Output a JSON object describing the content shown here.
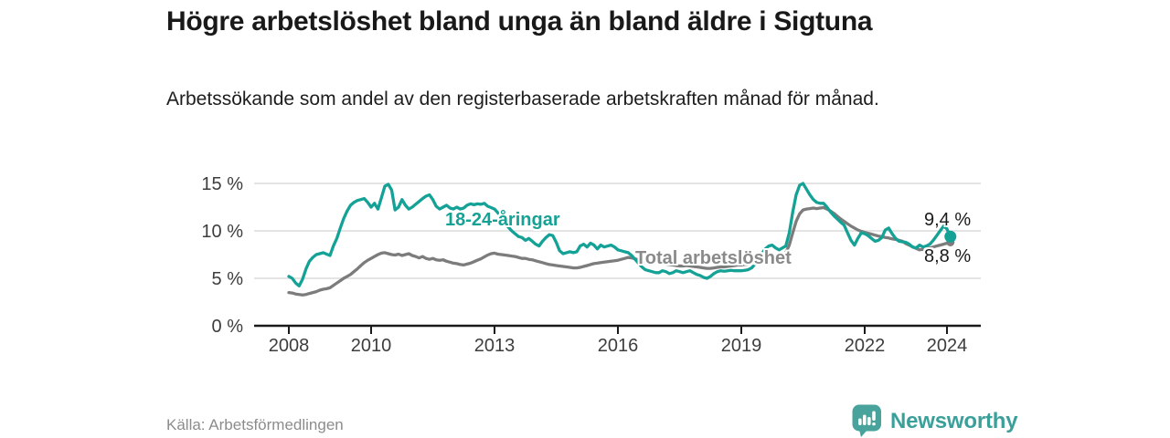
{
  "chart_data": {
    "type": "line",
    "title": "Högre arbetslöshet bland unga än bland äldre i Sigtuna",
    "subtitle": "Arbetssökande som andel av den registerbaserade arbetskraften månad för månad.",
    "unit": "%",
    "x_start_year": 2008,
    "x_step_months": 1,
    "ylim": [
      0,
      15.5
    ],
    "grid": "horizontal",
    "y_ticks": [
      {
        "value": 0,
        "label": "0 %"
      },
      {
        "value": 5,
        "label": "5 %"
      },
      {
        "value": 10,
        "label": "10 %"
      },
      {
        "value": 15,
        "label": "15 %"
      }
    ],
    "x_ticks": [
      {
        "value": 2008,
        "label": "2008"
      },
      {
        "value": 2010,
        "label": "2010"
      },
      {
        "value": 2013,
        "label": "2013"
      },
      {
        "value": 2016,
        "label": "2016"
      },
      {
        "value": 2019,
        "label": "2019"
      },
      {
        "value": 2022,
        "label": "2022"
      },
      {
        "value": 2024,
        "label": "2024"
      }
    ],
    "series": [
      {
        "name": "Total arbetslöshet",
        "color": "#7c7c7c",
        "end_dot_radius": 4.5,
        "end_value_label": "8,8 %",
        "values": [
          3.5,
          3.45,
          3.35,
          3.3,
          3.25,
          3.3,
          3.4,
          3.5,
          3.6,
          3.75,
          3.85,
          3.9,
          4.0,
          4.25,
          4.5,
          4.75,
          5.0,
          5.2,
          5.4,
          5.7,
          6.0,
          6.35,
          6.65,
          6.9,
          7.1,
          7.3,
          7.5,
          7.65,
          7.7,
          7.6,
          7.5,
          7.45,
          7.55,
          7.4,
          7.5,
          7.6,
          7.4,
          7.3,
          7.15,
          7.3,
          7.1,
          7.0,
          7.1,
          6.95,
          6.9,
          6.95,
          6.8,
          6.7,
          6.6,
          6.55,
          6.45,
          6.4,
          6.5,
          6.6,
          6.75,
          6.9,
          7.05,
          7.25,
          7.45,
          7.6,
          7.65,
          7.55,
          7.5,
          7.45,
          7.4,
          7.35,
          7.3,
          7.2,
          7.1,
          7.1,
          7.0,
          6.95,
          6.85,
          6.75,
          6.65,
          6.55,
          6.45,
          6.4,
          6.35,
          6.3,
          6.25,
          6.2,
          6.15,
          6.1,
          6.1,
          6.15,
          6.25,
          6.35,
          6.45,
          6.55,
          6.6,
          6.65,
          6.7,
          6.75,
          6.8,
          6.85,
          6.9,
          7.0,
          7.1,
          7.2,
          7.15,
          7.05,
          6.95,
          6.85,
          6.8,
          6.75,
          6.7,
          6.65,
          6.6,
          6.55,
          6.5,
          6.45,
          6.4,
          6.35,
          6.3,
          6.3,
          6.35,
          6.3,
          6.25,
          6.2,
          6.15,
          6.1,
          6.05,
          6.05,
          6.1,
          6.15,
          6.2,
          6.2,
          6.25,
          6.3,
          6.35,
          6.4,
          6.4,
          6.45,
          6.5,
          6.55,
          6.65,
          6.75,
          6.85,
          6.9,
          7.0,
          7.05,
          7.1,
          7.2,
          7.4,
          7.7,
          8.5,
          9.8,
          11.0,
          11.8,
          12.2,
          12.3,
          12.35,
          12.4,
          12.35,
          12.4,
          12.45,
          12.3,
          12.1,
          11.85,
          11.55,
          11.25,
          11.0,
          10.75,
          10.5,
          10.3,
          10.1,
          9.95,
          9.85,
          9.75,
          9.65,
          9.55,
          9.45,
          9.4,
          9.3,
          9.25,
          9.15,
          9.1,
          9.0,
          8.9,
          8.65,
          8.5,
          8.3,
          8.15,
          8.0,
          8.05,
          8.1,
          8.2,
          8.3,
          8.4,
          8.5,
          8.6,
          8.7,
          8.8
        ]
      },
      {
        "name": "18-24-åringar",
        "color": "#14A296",
        "end_dot_radius": 6.5,
        "end_value_label": "9,4 %",
        "values": [
          5.2,
          5.0,
          4.5,
          4.2,
          4.9,
          6.0,
          6.8,
          7.2,
          7.5,
          7.6,
          7.7,
          7.55,
          7.4,
          8.4,
          9.2,
          10.3,
          11.3,
          12.1,
          12.7,
          13.0,
          13.2,
          13.3,
          13.4,
          13.0,
          12.5,
          12.9,
          12.3,
          13.5,
          14.7,
          14.9,
          14.3,
          12.2,
          12.5,
          13.3,
          12.7,
          12.3,
          12.5,
          12.8,
          13.1,
          13.4,
          13.65,
          13.8,
          13.3,
          12.6,
          12.3,
          12.5,
          12.7,
          12.4,
          12.3,
          12.5,
          12.3,
          12.4,
          12.7,
          12.85,
          12.75,
          12.85,
          12.8,
          12.9,
          12.6,
          12.45,
          12.3,
          11.9,
          11.4,
          10.9,
          10.4,
          10.0,
          9.7,
          9.4,
          9.3,
          9.0,
          9.2,
          8.9,
          8.6,
          8.4,
          8.9,
          9.3,
          9.6,
          9.5,
          8.8,
          7.9,
          7.6,
          7.7,
          7.8,
          7.7,
          7.8,
          8.4,
          8.6,
          8.3,
          8.7,
          8.5,
          8.1,
          8.5,
          8.3,
          8.4,
          8.5,
          8.3,
          8.0,
          7.9,
          7.8,
          7.7,
          7.4,
          7.0,
          6.6,
          6.2,
          5.9,
          5.8,
          5.7,
          5.6,
          5.6,
          5.8,
          5.7,
          5.5,
          5.6,
          5.8,
          5.7,
          5.6,
          5.7,
          5.8,
          5.6,
          5.4,
          5.3,
          5.1,
          5.0,
          5.2,
          5.5,
          5.7,
          5.8,
          5.75,
          5.8,
          5.85,
          5.8,
          5.8,
          5.8,
          5.85,
          5.9,
          6.1,
          6.5,
          7.0,
          7.6,
          8.1,
          8.4,
          8.5,
          8.2,
          8.0,
          8.2,
          8.4,
          9.8,
          12.0,
          13.8,
          14.8,
          15.0,
          14.4,
          13.8,
          13.3,
          13.0,
          12.9,
          12.9,
          12.5,
          12.0,
          11.6,
          11.25,
          10.9,
          10.6,
          9.8,
          9.0,
          8.5,
          9.2,
          9.8,
          9.7,
          9.5,
          9.2,
          8.9,
          9.0,
          9.3,
          10.1,
          10.3,
          9.7,
          9.2,
          8.9,
          8.85,
          8.8,
          8.6,
          8.3,
          8.2,
          8.5,
          8.3,
          8.4,
          8.6,
          9.0,
          9.5,
          10.0,
          10.5,
          10.2,
          9.4
        ]
      }
    ],
    "series_labels": {
      "young": "18-24-åringar",
      "total": "Total arbetslöshet"
    },
    "end_labels": {
      "young": "9,4 %",
      "total": "8,8 %"
    }
  },
  "footer": {
    "source": "Källa: Arbetsförmedlingen",
    "logo_text": "Newsworthy"
  },
  "colors": {
    "accent_teal": "#14A296",
    "line_gray": "#7c7c7c",
    "label_gray": "#8a8a8a",
    "grid": "#dcdcdc",
    "axis": "#1a1a1a",
    "logo_teal": "#47a39b"
  }
}
